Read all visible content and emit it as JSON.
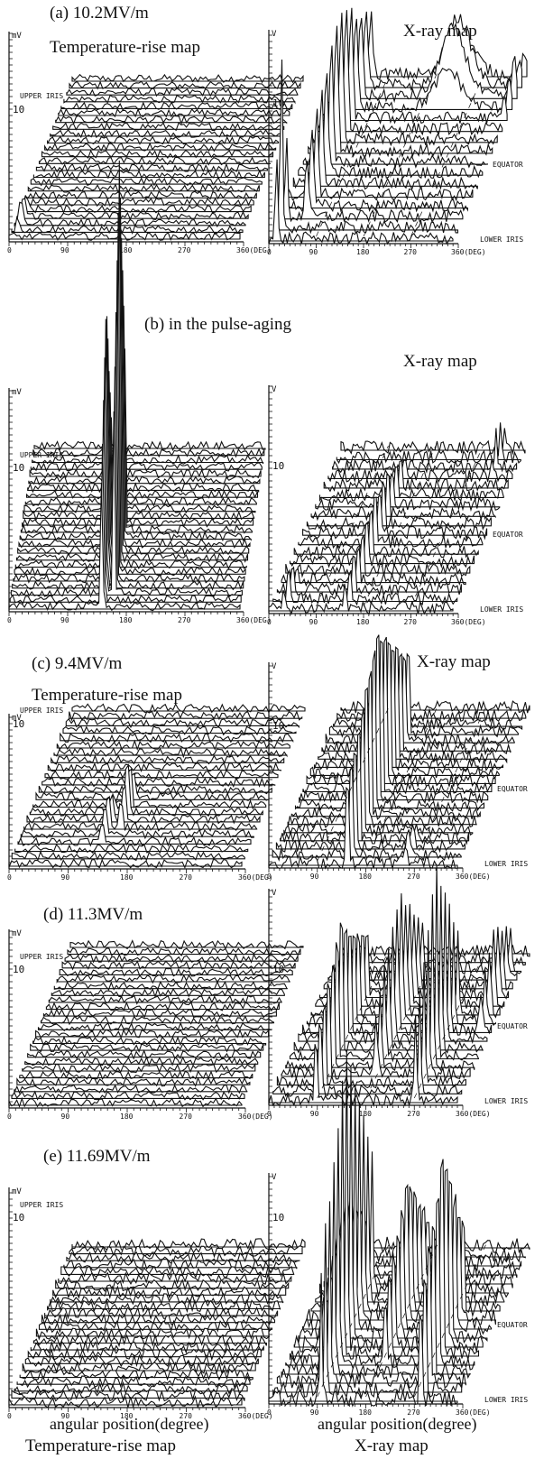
{
  "captions": {
    "a_title": "(a)  10.2MV/m",
    "a_left": "Temperature-rise map",
    "a_right": "X-ray map",
    "b_title": "(b)  in the pulse-aging",
    "b_right": "X-ray map",
    "c_title": "(c)  9.4MV/m",
    "c_left": "Temperature-rise map",
    "c_right": "X-ray map",
    "d_title": "(d)  11.3MV/m",
    "e_title": "(e)  11.69MV/m",
    "bottom_left_axis": "angular position(degree)",
    "bottom_right_axis": "angular position(degree)",
    "bottom_left_title": "Temperature-rise map",
    "bottom_right_title": "X-ray map"
  },
  "chart_data": [
    {
      "type": "area",
      "id": "a-temperature",
      "panel": "(a)",
      "map": "Temperature-rise map",
      "unit_label": "mV",
      "ytick": "10",
      "x_ticks": [
        "0",
        "90",
        "180",
        "270",
        "360(DEG)"
      ],
      "xlim": [
        0,
        360
      ],
      "annotations": [
        "UPPER IRIS"
      ],
      "series_count": 24,
      "peaks": [
        {
          "deg": 10,
          "height": 2,
          "width": 8,
          "rows": [
            1,
            4
          ]
        }
      ]
    },
    {
      "type": "area",
      "id": "a-xray",
      "panel": "(a)",
      "map": "X-ray map",
      "unit_label": "V",
      "ytick": "10",
      "x_ticks": [
        "0",
        "90",
        "180",
        "270",
        "360(DEG)"
      ],
      "xlim": [
        0,
        360
      ],
      "annotations": [
        "EQUATOR",
        "LOWER IRIS"
      ],
      "series_count": 16,
      "peaks": [
        {
          "deg": 15,
          "height": 14,
          "width": 6,
          "rows": [
            0,
            2
          ]
        },
        {
          "deg": 55,
          "height": 10,
          "width": 10,
          "rows": [
            2,
            15
          ]
        },
        {
          "deg": 235,
          "height": 6,
          "width": 70,
          "rows": [
            12,
            15
          ]
        },
        {
          "deg": 355,
          "height": 3,
          "width": 12,
          "rows": [
            11,
            15
          ]
        }
      ]
    },
    {
      "type": "area",
      "id": "b-temperature",
      "panel": "(b)",
      "map": "Temperature-rise map",
      "unit_label": "mV",
      "ytick": "10",
      "x_ticks": [
        "0",
        "90",
        "180",
        "270",
        "360(DEG)"
      ],
      "xlim": [
        0,
        360
      ],
      "annotations": [
        "UPPER IRIS"
      ],
      "series_count": 24,
      "peaks": [
        {
          "deg": 145,
          "height": 25,
          "width": 4,
          "rows": [
            0,
            9
          ]
        },
        {
          "deg": 160,
          "height": 28,
          "width": 4,
          "rows": [
            2,
            12
          ]
        }
      ]
    },
    {
      "type": "area",
      "id": "b-xray",
      "panel": "(b)",
      "map": "X-ray map",
      "unit_label": "V",
      "ytick": "10",
      "x_ticks": [
        "0",
        "90",
        "180",
        "270",
        "360(DEG)"
      ],
      "xlim": [
        0,
        360
      ],
      "annotations": [
        "EQUATOR",
        "LOWER IRIS"
      ],
      "series_count": 18,
      "peaks": [
        {
          "deg": 150,
          "height": 6,
          "width": 5,
          "rows": [
            0,
            14
          ]
        },
        {
          "deg": 30,
          "height": 3,
          "width": 6,
          "rows": [
            0,
            3
          ]
        },
        {
          "deg": 320,
          "height": 3,
          "width": 6,
          "rows": [
            14,
            17
          ]
        }
      ]
    },
    {
      "type": "area",
      "id": "c-temperature",
      "panel": "(c)",
      "map": "Temperature-rise map",
      "unit_label": "mV",
      "ytick": "10",
      "x_ticks": [
        "0",
        "90",
        "180",
        "270",
        "360(DEG)"
      ],
      "xlim": [
        0,
        360
      ],
      "annotations": [
        "UPPER IRIS"
      ],
      "series_count": 22,
      "peaks": [
        {
          "deg": 130,
          "height": 4,
          "width": 5,
          "rows": [
            3,
            7
          ]
        },
        {
          "deg": 150,
          "height": 6,
          "width": 5,
          "rows": [
            5,
            9
          ]
        }
      ]
    },
    {
      "type": "area",
      "id": "c-xray",
      "panel": "(c)",
      "map": "X-ray map",
      "unit_label": "V",
      "ytick": "10",
      "x_ticks": [
        "0",
        "90",
        "180",
        "270",
        "360(DEG)"
      ],
      "xlim": [
        0,
        360
      ],
      "annotations": [
        "EQUATOR",
        "LOWER IRIS"
      ],
      "series_count": 20,
      "peaks": [
        {
          "deg": 150,
          "height": 18,
          "width": 6,
          "rows": [
            0,
            16
          ]
        },
        {
          "deg": 260,
          "height": 2,
          "width": 12,
          "rows": [
            0,
            3
          ]
        }
      ]
    },
    {
      "type": "area",
      "id": "d-temperature",
      "panel": "(d)",
      "map": "Temperature-rise map",
      "unit_label": "mV",
      "ytick": "10",
      "x_ticks": [
        "0",
        "90",
        "180",
        "270",
        "360(DEG)"
      ],
      "xlim": [
        0,
        360
      ],
      "annotations": [
        "UPPER IRIS"
      ],
      "series_count": 24,
      "peaks": []
    },
    {
      "type": "area",
      "id": "d-xray",
      "panel": "(d)",
      "map": "X-ray map",
      "unit_label": "V",
      "ytick": "10",
      "x_ticks": [
        "0",
        "90",
        "180",
        "270",
        "360(DEG)"
      ],
      "xlim": [
        0,
        360
      ],
      "annotations": [
        "EQUATOR",
        "LOWER IRIS"
      ],
      "series_count": 18,
      "peaks": [
        {
          "deg": 90,
          "height": 14,
          "width": 6,
          "rows": [
            0,
            12
          ]
        },
        {
          "deg": 180,
          "height": 10,
          "width": 8,
          "rows": [
            3,
            14
          ]
        },
        {
          "deg": 280,
          "height": 14,
          "width": 6,
          "rows": [
            0,
            10
          ]
        },
        {
          "deg": 340,
          "height": 6,
          "width": 8,
          "rows": [
            8,
            15
          ]
        }
      ]
    },
    {
      "type": "area",
      "id": "e-temperature",
      "panel": "(e)",
      "map": "Temperature-rise map",
      "unit_label": "mV",
      "ytick": "10",
      "x_ticks": [
        "0",
        "90",
        "180",
        "270",
        "360(DEG)"
      ],
      "xlim": [
        0,
        360
      ],
      "annotations": [
        "UPPER IRIS"
      ],
      "series_count": 24,
      "peaks": []
    },
    {
      "type": "area",
      "id": "e-xray",
      "panel": "(e)",
      "map": "X-ray map",
      "unit_label": "V",
      "ytick": "10",
      "x_ticks": [
        "0",
        "90",
        "180",
        "270",
        "360(DEG)"
      ],
      "xlim": [
        0,
        360
      ],
      "annotations": [
        "EQUATOR",
        "LOWER IRIS"
      ],
      "series_count": 18,
      "peaks": [
        {
          "deg": 100,
          "height": 16,
          "width": 6,
          "rows": [
            0,
            12
          ]
        },
        {
          "deg": 190,
          "height": 9,
          "width": 8,
          "rows": [
            4,
            14
          ]
        },
        {
          "deg": 290,
          "height": 16,
          "width": 6,
          "rows": [
            0,
            10
          ]
        },
        {
          "deg": 60,
          "height": 6,
          "width": 20,
          "rows": [
            6,
            15
          ]
        }
      ]
    }
  ]
}
